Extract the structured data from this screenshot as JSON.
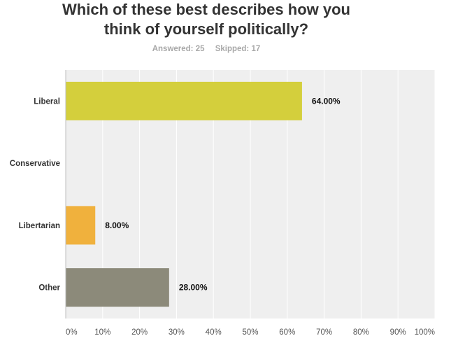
{
  "chart_data": {
    "type": "bar",
    "orientation": "horizontal",
    "title_lines": [
      "Which of these best describes how you",
      "think of yourself politically?"
    ],
    "stats": {
      "answered": "Answered: 25",
      "skipped": "Skipped: 17"
    },
    "categories": [
      "Liberal",
      "Conservative",
      "Libertarian",
      "Other"
    ],
    "values": [
      64,
      0,
      8,
      28
    ],
    "value_labels": [
      "64.00%",
      "",
      "8.00%",
      "28.00%"
    ],
    "colors": [
      "#d4cf3c",
      "#4b9cd3",
      "#f0b13d",
      "#8c8a7a"
    ],
    "xlim": [
      0,
      100
    ],
    "xticks": [
      "0%",
      "10%",
      "20%",
      "30%",
      "40%",
      "50%",
      "60%",
      "70%",
      "80%",
      "90%",
      "100%"
    ],
    "grid": true,
    "plot_background": "#efefef",
    "grid_color": "#ffffff"
  }
}
